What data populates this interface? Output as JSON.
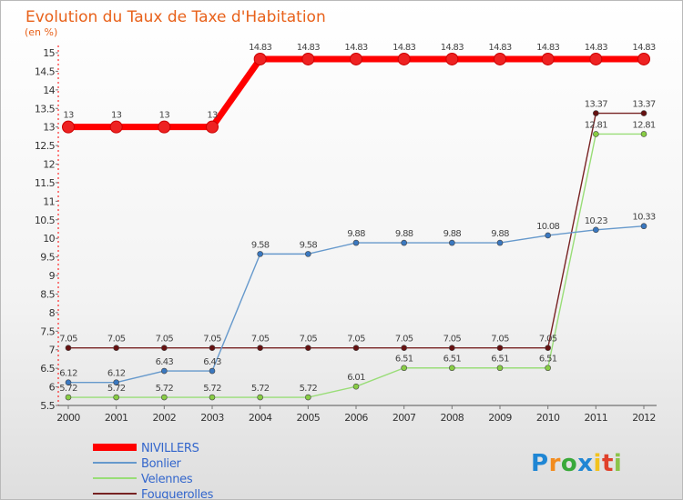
{
  "chart_data": {
    "type": "line",
    "title": "Evolution du Taux de Taxe d'Habitation",
    "subtitle": "(en %)",
    "xlabel": "",
    "ylabel": "(en %)",
    "x": [
      "2000",
      "2001",
      "2002",
      "2003",
      "2004",
      "2005",
      "2006",
      "2007",
      "2008",
      "2009",
      "2010",
      "2011",
      "2012"
    ],
    "ylim": [
      5.5,
      15
    ],
    "yticks": [
      "5.5",
      "6",
      "6.5",
      "7",
      "7.5",
      "8",
      "8.5",
      "9",
      "9.5",
      "10",
      "10.5",
      "11",
      "11.5",
      "12",
      "12.5",
      "13",
      "13.5",
      "14",
      "14.5",
      "15"
    ],
    "grid": false,
    "legend_position": "bottom-left",
    "series": [
      {
        "name": "NIVILLERS",
        "color": "#ff0000",
        "marker_color": "#ee2222",
        "values": [
          13,
          13,
          13,
          13,
          14.83,
          14.83,
          14.83,
          14.83,
          14.83,
          14.83,
          14.83,
          14.83,
          14.83
        ],
        "labels": [
          "13",
          "13",
          "13",
          "13",
          "14.83",
          "14.83",
          "14.83",
          "14.83",
          "14.83",
          "14.83",
          "14.83",
          "14.83",
          "14.83"
        ]
      },
      {
        "name": "Bonlier",
        "color": "#6699cc",
        "marker_color": "#3a78c0",
        "values": [
          6.12,
          6.12,
          6.43,
          6.43,
          9.58,
          9.58,
          9.88,
          9.88,
          9.88,
          9.88,
          10.08,
          10.23,
          10.33
        ],
        "labels": [
          "6.12",
          "6.12",
          "6.43",
          "6.43",
          "9.58",
          "9.58",
          "9.88",
          "9.88",
          "9.88",
          "9.88",
          "10.08",
          "10.23",
          "10.33"
        ]
      },
      {
        "name": "Velennes",
        "color": "#99dd77",
        "marker_color": "#88cc44",
        "values": [
          5.72,
          5.72,
          5.72,
          5.72,
          5.72,
          5.72,
          6.01,
          6.51,
          6.51,
          6.51,
          6.51,
          12.81,
          12.81
        ],
        "labels": [
          "5.72",
          "5.72",
          "5.72",
          "5.72",
          "5.72",
          "5.72",
          "6.01",
          "6.51",
          "6.51",
          "6.51",
          "6.51",
          "12.81",
          "12.81"
        ]
      },
      {
        "name": "Fouquerolles",
        "color": "#772222",
        "marker_color": "#661111",
        "values": [
          7.05,
          7.05,
          7.05,
          7.05,
          7.05,
          7.05,
          7.05,
          7.05,
          7.05,
          7.05,
          7.05,
          13.37,
          13.37
        ],
        "labels": [
          "7.05",
          "7.05",
          "7.05",
          "7.05",
          "7.05",
          "7.05",
          "7.05",
          "7.05",
          "7.05",
          "7.05",
          "7.05",
          "13.37",
          "13.37"
        ]
      }
    ]
  },
  "watermark": "Proxiti"
}
